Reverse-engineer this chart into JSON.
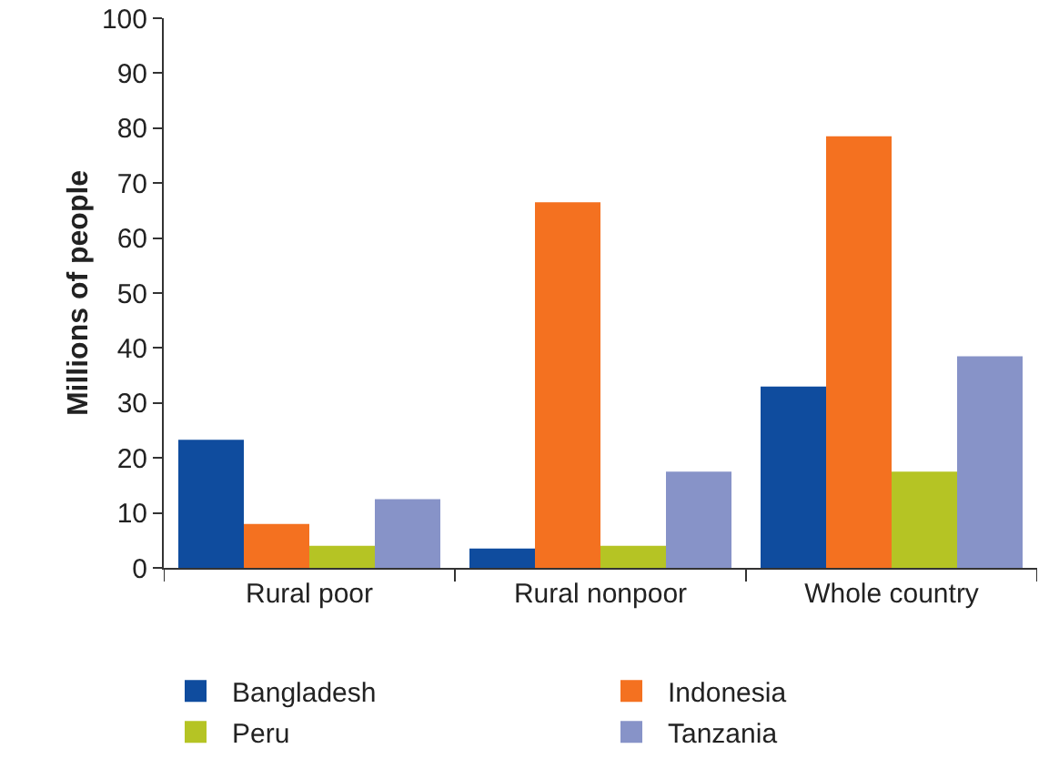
{
  "chart_data": {
    "type": "bar",
    "ylabel": "Millions of people",
    "categories": [
      "Rural poor",
      "Rural nonpoor",
      "Whole country"
    ],
    "series": [
      {
        "name": "Bangladesh",
        "color": "#0f4c9e",
        "values": [
          23.3,
          3.5,
          33
        ]
      },
      {
        "name": "Indonesia",
        "color": "#f47120",
        "values": [
          8,
          66.5,
          78.5
        ]
      },
      {
        "name": "Peru",
        "color": "#b5c424",
        "values": [
          4,
          4,
          17.5
        ]
      },
      {
        "name": "Tanzania",
        "color": "#8793c8",
        "values": [
          12.5,
          17.5,
          38.5
        ]
      }
    ],
    "ylim": [
      0,
      100
    ],
    "yticks": [
      0,
      10,
      20,
      30,
      40,
      50,
      60,
      70,
      80,
      90,
      100
    ],
    "grid": false,
    "legend": "bottom"
  }
}
